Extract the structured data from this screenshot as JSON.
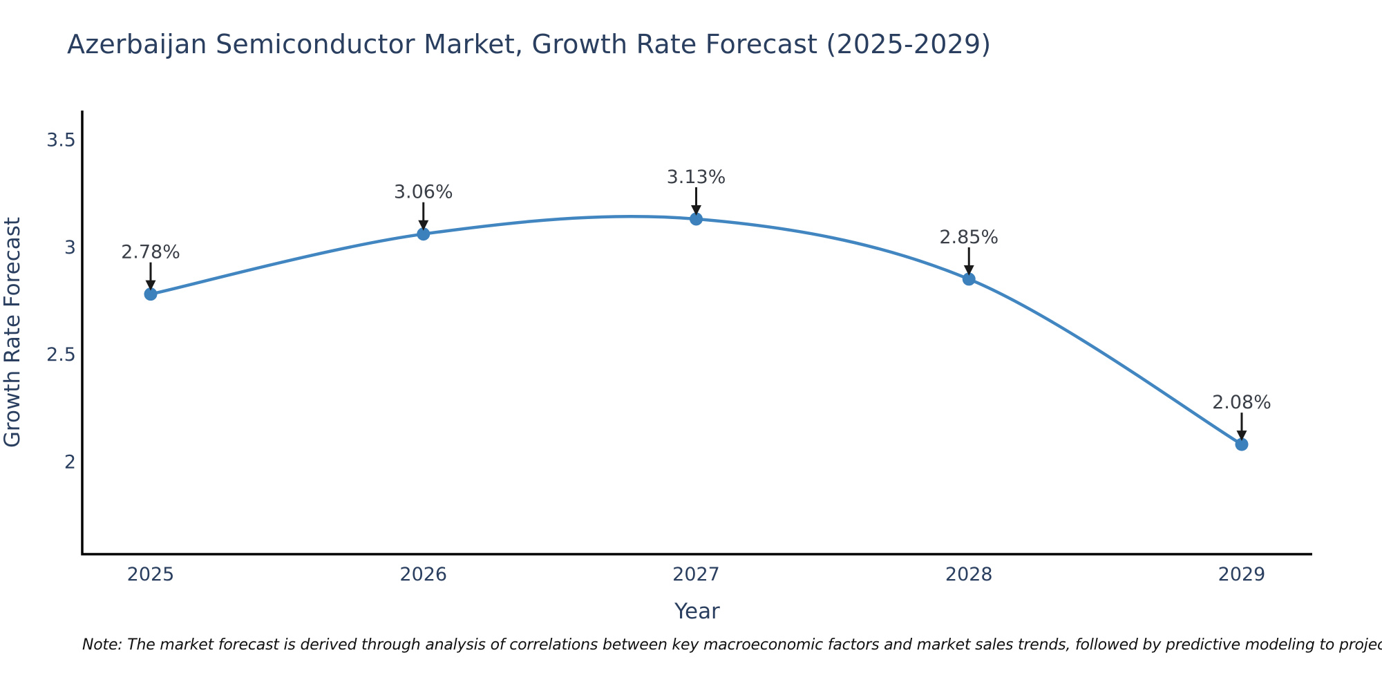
{
  "chart_data": {
    "type": "line",
    "title": "Azerbaijan Semiconductor Market, Growth Rate Forecast (2025-2029)",
    "xlabel": "Year",
    "ylabel": "Growth Rate Forecast",
    "categories": [
      "2025",
      "2026",
      "2027",
      "2028",
      "2029"
    ],
    "series": [
      {
        "name": "Growth Rate Forecast",
        "values": [
          2.78,
          3.06,
          3.13,
          2.85,
          2.08
        ]
      }
    ],
    "point_labels": [
      "2.78%",
      "3.06%",
      "3.13%",
      "2.85%",
      "2.08%"
    ],
    "yticks": [
      3.5,
      3,
      2.5,
      2
    ],
    "ylim": [
      1.57,
      3.64
    ],
    "line_shape": "spline",
    "grid": false,
    "legend_position": "none",
    "annotation_style": "label-above-with-down-arrow",
    "note": "Note: The market forecast is derived through analysis of correlations between key macroeconomic factors and market sales trends, followed by predictive modeling to project future sales",
    "colors": {
      "line": "#4186c0",
      "marker": "#3c80bc",
      "axis_line": "#000000",
      "text": "#2a3f5f",
      "annotation_text": "#3a3f47",
      "arrow": "#1a1a1a",
      "note_text": "#111111",
      "background": "#ffffff"
    }
  }
}
